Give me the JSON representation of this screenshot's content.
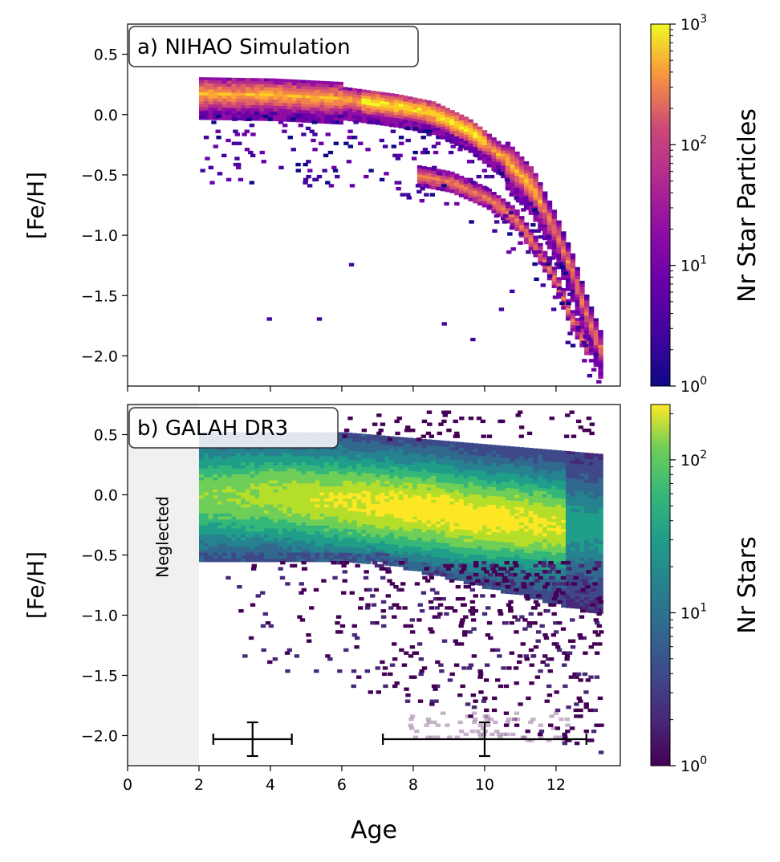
{
  "chart_data": [
    {
      "type": "heatmap",
      "panel_label": "a) NIHAO Simulation",
      "xlabel": "",
      "ylabel": "[Fe/H]",
      "xlim": [
        0,
        13.8
      ],
      "ylim": [
        -2.25,
        0.75
      ],
      "yticks": [
        "0.5",
        "0.0",
        "−0.5",
        "−1.0",
        "−1.5",
        "−2.0"
      ],
      "ytick_values": [
        0.5,
        0.0,
        -0.5,
        -1.0,
        -1.5,
        -2.0
      ],
      "colormap": "plasma",
      "colorbar": {
        "label": "Nr Star Particles",
        "scale": "log",
        "range": [
          1,
          1000
        ],
        "ticks": [
          {
            "value": 1,
            "base": "10",
            "exp": "0"
          },
          {
            "value": 10,
            "base": "10",
            "exp": "1"
          },
          {
            "value": 100,
            "base": "10",
            "exp": "2"
          },
          {
            "value": 1000,
            "base": "10",
            "exp": "3"
          }
        ]
      },
      "tracks": [
        {
          "description": "main sequence track",
          "points": [
            [
              2.0,
              0.18
            ],
            [
              4.0,
              0.17
            ],
            [
              6.0,
              0.14
            ],
            [
              7.5,
              0.08
            ],
            [
              8.5,
              0.02
            ],
            [
              9.5,
              -0.12
            ],
            [
              10.5,
              -0.35
            ],
            [
              11.3,
              -0.6
            ],
            [
              11.9,
              -0.95
            ],
            [
              12.4,
              -1.3
            ],
            [
              12.8,
              -1.65
            ],
            [
              13.2,
              -1.95
            ]
          ]
        },
        {
          "description": "secondary track",
          "points": [
            [
              8.1,
              -0.5
            ],
            [
              9.0,
              -0.55
            ],
            [
              10.0,
              -0.68
            ],
            [
              10.8,
              -0.85
            ],
            [
              11.4,
              -1.1
            ],
            [
              11.9,
              -1.35
            ],
            [
              12.4,
              -1.7
            ],
            [
              12.9,
              -1.95
            ]
          ]
        }
      ]
    },
    {
      "type": "heatmap",
      "panel_label": "b) GALAH DR3",
      "xlabel": "Age",
      "ylabel": "[Fe/H]",
      "xlim": [
        0,
        13.8
      ],
      "ylim": [
        -2.25,
        0.75
      ],
      "xticks": [
        0,
        2,
        4,
        6,
        8,
        10,
        12
      ],
      "yticks": [
        "0.5",
        "0.0",
        "−0.5",
        "−1.0",
        "−1.5",
        "−2.0"
      ],
      "ytick_values": [
        0.5,
        0.0,
        -0.5,
        -1.0,
        -1.5,
        -2.0
      ],
      "colormap": "viridis",
      "colorbar": {
        "label": "Nr Stars",
        "scale": "log",
        "range": [
          1,
          230
        ],
        "ticks": [
          {
            "value": 1,
            "base": "10",
            "exp": "0"
          },
          {
            "value": 10,
            "base": "10",
            "exp": "1"
          },
          {
            "value": 100,
            "base": "10",
            "exp": "2"
          }
        ]
      },
      "neglected_region": {
        "label": "Neglected",
        "x_range": [
          0,
          2
        ]
      },
      "density_peak": {
        "age": 9.0,
        "feh": -0.15
      },
      "error_bars": [
        {
          "x": 3.5,
          "y": -2.03,
          "xerr": 1.1,
          "yerr": 0.14
        },
        {
          "x": 10.0,
          "y": -2.03,
          "xerr": 2.85,
          "yerr": 0.14
        }
      ]
    }
  ]
}
